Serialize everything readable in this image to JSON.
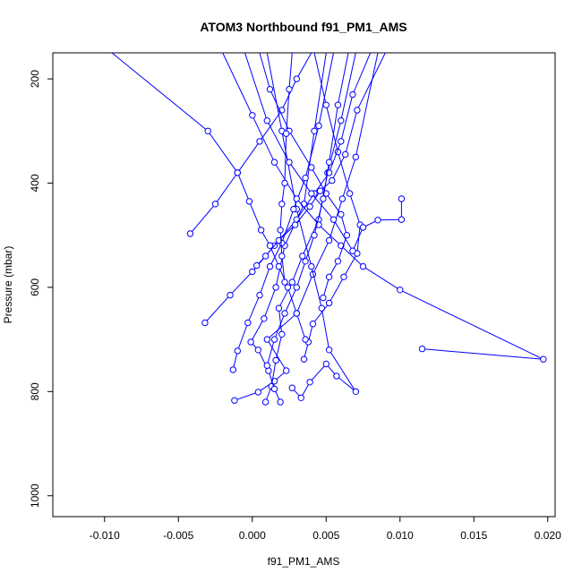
{
  "chart_data": {
    "type": "line",
    "title": "ATOM3 Northbound f91_PM1_AMS",
    "xlabel": "f91_PM1_AMS",
    "ylabel": "Pressure (mbar)",
    "xlim": [
      -0.0135,
      0.0205
    ],
    "ylim": [
      1040,
      150
    ],
    "y_axis_inverted": true,
    "x_ticks": [
      -0.01,
      -0.005,
      0.0,
      0.005,
      0.01,
      0.015,
      0.02
    ],
    "x_tick_labels": [
      "-0.010",
      "-0.005",
      "0.000",
      "0.005",
      "0.010",
      "0.015",
      "0.020"
    ],
    "y_ticks": [
      200,
      400,
      600,
      800,
      1000
    ],
    "y_tick_labels": [
      "200",
      "400",
      "600",
      "800",
      "1000"
    ],
    "series_color": "#0000ff",
    "marker": "open-circle",
    "grid": false,
    "series": [
      {
        "values": [
          [
            -0.0012,
            817
          ],
          [
            0.0004,
            801
          ],
          [
            0.0015,
            780
          ],
          [
            0.0023,
            760
          ],
          [
            0.001,
            700
          ],
          [
            0.003,
            650
          ],
          [
            0.0041,
            575
          ],
          [
            0.0052,
            510
          ],
          [
            0.0061,
            430
          ],
          [
            0.007,
            350
          ],
          [
            0.0085,
            150
          ]
        ]
      },
      {
        "values": [
          [
            0.0009,
            820
          ],
          [
            0.0013,
            790
          ],
          [
            0.0016,
            740
          ],
          [
            0.002,
            690
          ],
          [
            0.0018,
            640
          ],
          [
            0.0027,
            590
          ],
          [
            0.0034,
            540
          ],
          [
            0.0045,
            470
          ],
          [
            0.0051,
            380
          ],
          [
            0.006,
            280
          ],
          [
            0.007,
            150
          ]
        ]
      },
      {
        "values": [
          [
            0.0019,
            820
          ],
          [
            0.0015,
            795
          ],
          [
            0.0011,
            760
          ],
          [
            0.0004,
            720
          ],
          [
            -0.0001,
            705
          ],
          [
            0.0008,
            660
          ],
          [
            0.0016,
            600
          ],
          [
            0.0022,
            520
          ],
          [
            0.0035,
            440
          ],
          [
            0.0042,
            300
          ],
          [
            0.005,
            150
          ]
        ]
      },
      {
        "values": [
          [
            0.0027,
            793
          ],
          [
            0.0033,
            812
          ],
          [
            0.0039,
            782
          ],
          [
            0.005,
            747
          ],
          [
            0.0057,
            770
          ],
          [
            0.007,
            800
          ],
          [
            0.0052,
            720
          ],
          [
            0.0047,
            640
          ],
          [
            0.004,
            560
          ],
          [
            0.003,
            450
          ],
          [
            0.002,
            300
          ],
          [
            0.001,
            150
          ]
        ]
      },
      {
        "values": [
          [
            -0.0013,
            758
          ],
          [
            -0.001,
            722
          ],
          [
            -0.0003,
            668
          ],
          [
            0.0005,
            615
          ],
          [
            0.0012,
            560
          ],
          [
            0.002,
            515
          ],
          [
            0.0028,
            450
          ],
          [
            0.0036,
            390
          ],
          [
            0.0045,
            290
          ],
          [
            0.0055,
            150
          ]
        ]
      },
      {
        "values": [
          [
            0.0035,
            738
          ],
          [
            0.0038,
            705
          ],
          [
            0.0041,
            670
          ],
          [
            0.0052,
            630
          ],
          [
            0.0062,
            580
          ],
          [
            0.0071,
            535
          ],
          [
            0.0073,
            480
          ],
          [
            0.0066,
            420
          ],
          [
            0.0058,
            340
          ],
          [
            0.005,
            250
          ],
          [
            0.0042,
            150
          ]
        ]
      },
      {
        "values": [
          [
            0.0115,
            718
          ],
          [
            0.0197,
            738
          ],
          [
            0.01,
            605
          ],
          [
            0.0075,
            560
          ],
          [
            0.006,
            520
          ],
          [
            0.0045,
            480
          ],
          [
            0.003,
            430
          ],
          [
            0.0015,
            360
          ],
          [
            0.0,
            270
          ],
          [
            -0.002,
            150
          ]
        ]
      },
      {
        "values": [
          [
            -0.0032,
            668
          ],
          [
            -0.0015,
            615
          ],
          [
            0.0,
            570
          ],
          [
            0.0015,
            520
          ],
          [
            0.003,
            470
          ],
          [
            0.0042,
            420
          ],
          [
            0.0052,
            380
          ],
          [
            0.006,
            320
          ],
          [
            0.0068,
            230
          ],
          [
            0.008,
            150
          ]
        ]
      },
      {
        "values": [
          [
            -0.0042,
            497
          ],
          [
            -0.0025,
            440
          ],
          [
            -0.001,
            380
          ],
          [
            0.0005,
            320
          ],
          [
            0.002,
            260
          ],
          [
            0.003,
            200
          ],
          [
            0.004,
            150
          ]
        ]
      },
      {
        "values": [
          [
            0.0101,
            430
          ],
          [
            0.0101,
            470
          ],
          [
            0.0085,
            471
          ],
          [
            0.0075,
            485
          ],
          [
            0.0068,
            530
          ],
          [
            0.0055,
            470
          ],
          [
            0.004,
            420
          ],
          [
            0.0025,
            360
          ],
          [
            0.001,
            280
          ],
          [
            -0.0005,
            150
          ]
        ]
      },
      {
        "values": [
          [
            0.0003,
            558
          ],
          [
            0.0009,
            540
          ],
          [
            0.0018,
            510
          ],
          [
            0.0029,
            480
          ],
          [
            0.0039,
            445
          ],
          [
            0.0046,
            415
          ],
          [
            0.0054,
            395
          ],
          [
            0.0063,
            345
          ],
          [
            0.0071,
            260
          ],
          [
            0.009,
            150
          ]
        ]
      },
      {
        "values": [
          [
            0.0036,
            700
          ],
          [
            0.003,
            650
          ],
          [
            0.0024,
            600
          ],
          [
            0.0018,
            560
          ],
          [
            0.0012,
            520
          ],
          [
            0.0006,
            490
          ],
          [
            -0.0002,
            435
          ],
          [
            -0.001,
            380
          ],
          [
            -0.003,
            300
          ],
          [
            -0.0095,
            150
          ]
        ]
      },
      {
        "values": [
          [
            0.0048,
            620
          ],
          [
            0.0052,
            580
          ],
          [
            0.0058,
            550
          ],
          [
            0.0064,
            500
          ],
          [
            0.006,
            460
          ],
          [
            0.005,
            420
          ],
          [
            0.004,
            370
          ],
          [
            0.0025,
            300
          ],
          [
            0.0012,
            220
          ],
          [
            0.0005,
            150
          ]
        ]
      },
      {
        "values": [
          [
            0.0022,
            590
          ],
          [
            0.002,
            540
          ],
          [
            0.0019,
            490
          ],
          [
            0.002,
            440
          ],
          [
            0.0022,
            400
          ],
          [
            0.0023,
            305
          ],
          [
            0.0025,
            220
          ],
          [
            0.0027,
            150
          ]
        ]
      },
      {
        "values": [
          [
            0.001,
            750
          ],
          [
            0.0015,
            700
          ],
          [
            0.0022,
            650
          ],
          [
            0.003,
            600
          ],
          [
            0.0036,
            550
          ],
          [
            0.0042,
            500
          ],
          [
            0.0048,
            430
          ],
          [
            0.0052,
            360
          ],
          [
            0.0058,
            250
          ],
          [
            0.0065,
            150
          ]
        ]
      }
    ]
  }
}
